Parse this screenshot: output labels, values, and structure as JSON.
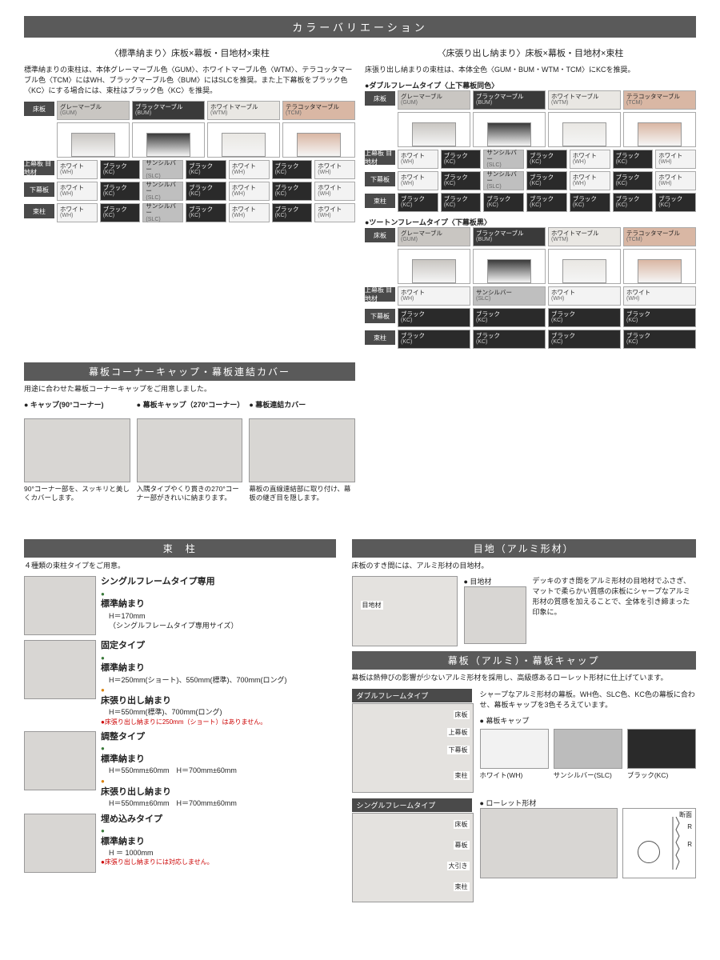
{
  "title": "カラーバリエーション",
  "left": {
    "head": "〈標準納まり〉床板×幕板・目地材×束柱",
    "note": "標準納まりの束柱は、本体グレーマーブル色〈GUM〉、ホワイトマーブル色〈WTM〉、テラコッタマーブル色〈TCM〉にはWH、ブラックマーブル色〈BUM〉にはSLCを推奨。また上下幕板をブラック色〈KC〉にする場合には、束柱はブラック色〈KC〉を推奨。",
    "board_lab": "床板",
    "boards": [
      {
        "n": "グレーマーブル",
        "c": "(GUM)",
        "hex": "#c9c6c2"
      },
      {
        "n": "ブラックマーブル",
        "c": "(BUM)",
        "hex": "#3a3a3a"
      },
      {
        "n": "ホワイトマーブル",
        "c": "(WTM)",
        "hex": "#e9e7e3"
      },
      {
        "n": "テラコッタマーブル",
        "c": "(TCM)",
        "hex": "#d9b7a4"
      }
    ],
    "rowlabs": [
      "上幕板 目地材",
      "下幕板",
      "束柱"
    ],
    "chips": [
      [
        [
          "ホワイト",
          "(WH)",
          "#f3f3f3"
        ],
        [
          "ブラック",
          "(KC)",
          "#2a2a2a"
        ],
        [
          "サンシルバー",
          "(SLC)",
          "#bfbfbf"
        ],
        [
          "ブラック",
          "(KC)",
          "#2a2a2a"
        ],
        [
          "ホワイト",
          "(WH)",
          "#f3f3f3"
        ],
        [
          "ブラック",
          "(KC)",
          "#2a2a2a"
        ],
        [
          "ホワイト",
          "(WH)",
          "#f3f3f3"
        ]
      ],
      [
        [
          "ホワイト",
          "(WH)",
          "#f3f3f3"
        ],
        [
          "ブラック",
          "(KC)",
          "#2a2a2a"
        ],
        [
          "サンシルバー",
          "(SLC)",
          "#bfbfbf"
        ],
        [
          "ブラック",
          "(KC)",
          "#2a2a2a"
        ],
        [
          "ホワイト",
          "(WH)",
          "#f3f3f3"
        ],
        [
          "ブラック",
          "(KC)",
          "#2a2a2a"
        ],
        [
          "ホワイト",
          "(WH)",
          "#f3f3f3"
        ]
      ],
      [
        [
          "ホワイト",
          "(WH)",
          "#f3f3f3"
        ],
        [
          "ブラック",
          "(KC)",
          "#2a2a2a"
        ],
        [
          "サンシルバー",
          "(SLC)",
          "#bfbfbf"
        ],
        [
          "ブラック",
          "(KC)",
          "#2a2a2a"
        ],
        [
          "ホワイト",
          "(WH)",
          "#f3f3f3"
        ],
        [
          "ブラック",
          "(KC)",
          "#2a2a2a"
        ],
        [
          "ホワイト",
          "(WH)",
          "#f3f3f3"
        ]
      ]
    ]
  },
  "right": {
    "head": "〈床張り出し納まり〉床板×幕板・目地材×束柱",
    "note": "床張り出し納まりの束柱は、本体全色〈GUM・BUM・WTM・TCM〉にKCを推奨。",
    "sub1": "●ダブルフレームタイプ〈上下幕板同色〉",
    "sub2": "●ツートンフレームタイプ〈下幕板黒〉",
    "board_lab": "床板",
    "rowlabs1": [
      "上幕板 目地材",
      "下幕板",
      "束柱"
    ],
    "chips1": [
      [
        [
          "ホワイト",
          "(WH)",
          "#f3f3f3"
        ],
        [
          "ブラック",
          "(KC)",
          "#2a2a2a"
        ],
        [
          "サンシルバー",
          "(SLC)",
          "#bfbfbf"
        ],
        [
          "ブラック",
          "(KC)",
          "#2a2a2a"
        ],
        [
          "ホワイト",
          "(WH)",
          "#f3f3f3"
        ],
        [
          "ブラック",
          "(KC)",
          "#2a2a2a"
        ],
        [
          "ホワイト",
          "(WH)",
          "#f3f3f3"
        ]
      ],
      [
        [
          "ホワイト",
          "(WH)",
          "#f3f3f3"
        ],
        [
          "ブラック",
          "(KC)",
          "#2a2a2a"
        ],
        [
          "サンシルバー",
          "(SLC)",
          "#bfbfbf"
        ],
        [
          "ブラック",
          "(KC)",
          "#2a2a2a"
        ],
        [
          "ホワイト",
          "(WH)",
          "#f3f3f3"
        ],
        [
          "ブラック",
          "(KC)",
          "#2a2a2a"
        ],
        [
          "ホワイト",
          "(WH)",
          "#f3f3f3"
        ]
      ],
      [
        [
          "ブラック",
          "(KC)",
          "#2a2a2a"
        ],
        [
          "ブラック",
          "(KC)",
          "#2a2a2a"
        ],
        [
          "ブラック",
          "(KC)",
          "#2a2a2a"
        ],
        [
          "ブラック",
          "(KC)",
          "#2a2a2a"
        ],
        [
          "ブラック",
          "(KC)",
          "#2a2a2a"
        ],
        [
          "ブラック",
          "(KC)",
          "#2a2a2a"
        ],
        [
          "ブラック",
          "(KC)",
          "#2a2a2a"
        ]
      ]
    ],
    "rowlabs2": [
      "上幕板 目地材",
      "下幕板",
      "束柱"
    ],
    "chips2": [
      [
        [
          "ホワイト",
          "(WH)",
          "#f3f3f3"
        ],
        [
          "サンシルバー",
          "(SLC)",
          "#bfbfbf"
        ],
        [
          "ホワイト",
          "(WH)",
          "#f3f3f3"
        ],
        [
          "ホワイト",
          "(WH)",
          "#f3f3f3"
        ]
      ],
      [
        [
          "ブラック",
          "(KC)",
          "#2a2a2a"
        ],
        [
          "ブラック",
          "(KC)",
          "#2a2a2a"
        ],
        [
          "ブラック",
          "(KC)",
          "#2a2a2a"
        ],
        [
          "ブラック",
          "(KC)",
          "#2a2a2a"
        ]
      ],
      [
        [
          "ブラック",
          "(KC)",
          "#2a2a2a"
        ],
        [
          "ブラック",
          "(KC)",
          "#2a2a2a"
        ],
        [
          "ブラック",
          "(KC)",
          "#2a2a2a"
        ],
        [
          "ブラック",
          "(KC)",
          "#2a2a2a"
        ]
      ]
    ]
  },
  "corner": {
    "title": "幕板コーナーキャップ・幕板連結カバー",
    "lead": "用途に合わせた幕板コーナーキャップをご用意しました。",
    "items": [
      {
        "h": "● キャップ(90°コーナー)",
        "c": "90°コーナー部を、スッキリと美しくカバーします。"
      },
      {
        "h": "● 幕板キャップ（270°コーナー）",
        "c": "入隅タイプやくり貫きの270°コーナー部がきれいに納まります。"
      },
      {
        "h": "● 幕板連結カバー",
        "c": "幕板の直線連結部に取り付け、幕板の継ぎ目を隠します。"
      }
    ]
  },
  "pillar": {
    "title": "束　柱",
    "lead": "４種類の束柱タイプをご用意。",
    "rows": [
      {
        "h": "シングルフレームタイプ専用",
        "l": [
          [
            "b",
            "標準納まり"
          ],
          [
            "",
            "H＝170mm"
          ],
          [
            "",
            "（シングルフレームタイプ専用サイズ）"
          ]
        ]
      },
      {
        "h": "固定タイプ",
        "l": [
          [
            "b",
            "標準納まり"
          ],
          [
            "",
            "H＝250mm(ショート)、550mm(標準)、700mm(ロング)"
          ],
          [
            "p",
            "床張り出し納まり"
          ],
          [
            "",
            "H＝550mm(標準)、700mm(ロング)"
          ],
          [
            "r",
            "●床張り出し納まりに250mm（ショート）はありません。"
          ]
        ]
      },
      {
        "h": "調整タイプ",
        "l": [
          [
            "b",
            "標準納まり"
          ],
          [
            "",
            "H＝550mm±60mm　H＝700mm±60mm"
          ],
          [
            "p",
            "床張り出し納まり"
          ],
          [
            "",
            "H＝550mm±60mm　H＝700mm±60mm"
          ]
        ]
      },
      {
        "h": "埋め込みタイプ",
        "l": [
          [
            "b",
            "標準納まり"
          ],
          [
            "",
            "H ＝ 1000mm"
          ],
          [
            "r",
            "●床張り出し納まりには対応しません。"
          ]
        ]
      }
    ]
  },
  "meji": {
    "title": "目地（アルミ形材）",
    "lead": "床板のすき間には、アルミ形材の目地材。",
    "bl": "● 目地材",
    "lab": "目地材",
    "txt": "デッキのすき間をアルミ形材の目地材でふさぎ、マットで柔らかい質感の床板にシャープなアルミ形材の質感を加えることで、全体を引き締まった印象に。"
  },
  "maku": {
    "title": "幕板（アルミ）・幕板キャップ",
    "lead": "幕板は熱伸びの影響が少ないアルミ形材を採用し、高級感あるローレット形材に仕上げています。",
    "sub1": "ダブルフレームタイプ",
    "note1": "シャープなアルミ形材の幕板。WH色、SLC色、KC色の幕板に合わせ、幕板キャップを3色そろえています。",
    "capthead": "● 幕板キャップ",
    "diag1": [
      "床板",
      "上幕板",
      "下幕板",
      "束柱"
    ],
    "caps": [
      {
        "n": "ホワイト(WH)",
        "hex": "#f2f2f2"
      },
      {
        "n": "サンシルバー(SLC)",
        "hex": "#bcbcbc"
      },
      {
        "n": "ブラック(KC)",
        "hex": "#2a2a2a"
      }
    ],
    "sub2": "シングルフレームタイプ",
    "diag2": [
      "床板",
      "幕板",
      "大引き",
      "束柱"
    ],
    "knurl": "● ローレット形材",
    "knurl_lab": "断面"
  }
}
